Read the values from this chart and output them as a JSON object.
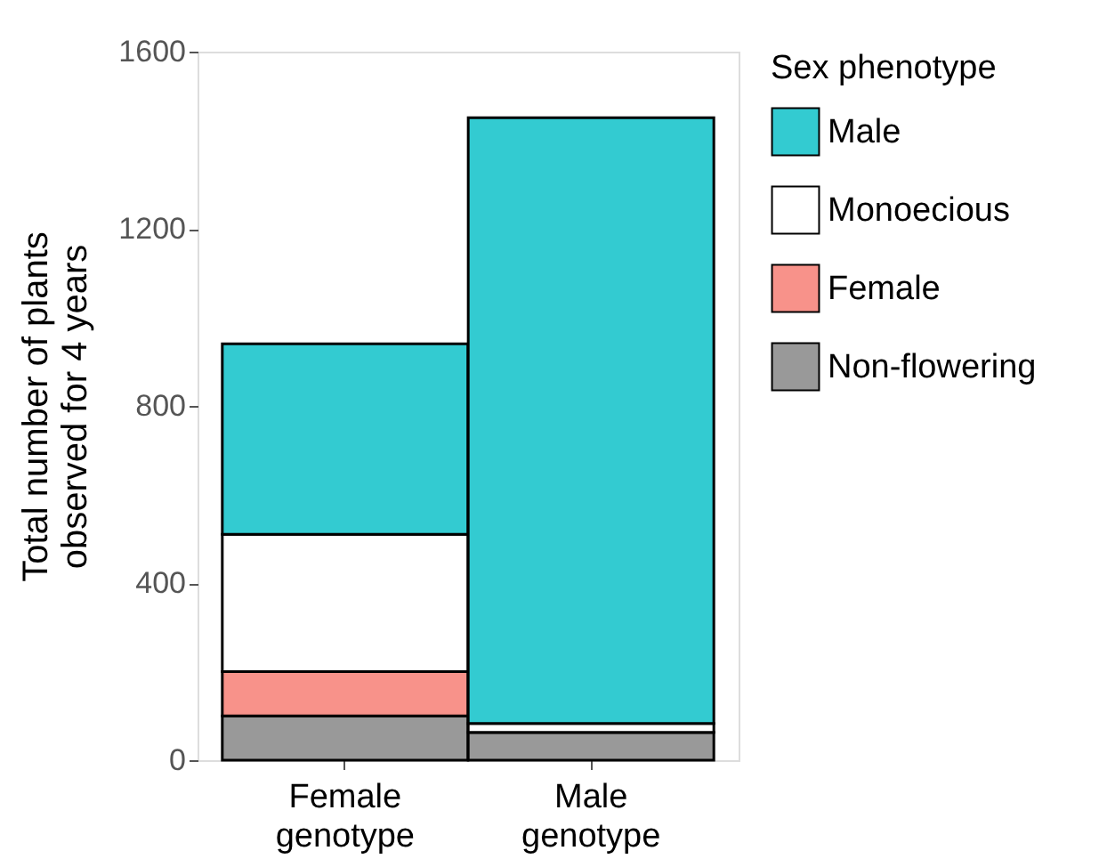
{
  "chart_data": {
    "type": "bar",
    "stacked": true,
    "ylabel": "Total number of plants\nobserved for 4 years",
    "legend_title": "Sex phenotype",
    "categories": [
      "Female genotype",
      "Male genotype"
    ],
    "series": [
      {
        "name": "Non-flowering",
        "color": "#999999",
        "values": [
          100,
          63
        ]
      },
      {
        "name": "Female",
        "color": "#f8928a",
        "values": [
          100,
          0
        ]
      },
      {
        "name": "Monoecious",
        "color": "#ffffff",
        "values": [
          310,
          20
        ]
      },
      {
        "name": "Male",
        "color": "#33cbd1",
        "values": [
          430,
          1368
        ]
      }
    ],
    "ylim": [
      0,
      1600
    ],
    "yticks": [
      0,
      400,
      800,
      1200,
      1600
    ],
    "grid": false,
    "legend": "right"
  }
}
